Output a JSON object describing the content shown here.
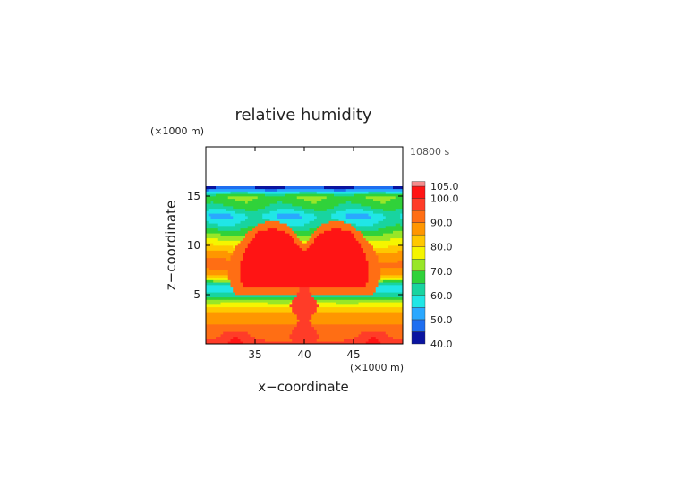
{
  "chart_data": {
    "type": "heatmap",
    "title": "relative humidity",
    "time_label": "10800 s",
    "xlabel": "x−coordinate",
    "ylabel": "z−coordinate",
    "x_unit": "(×1000 m)",
    "y_unit": "(×1000 m)",
    "xlim": [
      30,
      50
    ],
    "ylim": [
      0,
      20
    ],
    "x_ticks": [
      35,
      40,
      45
    ],
    "y_ticks": [
      5,
      10,
      15
    ],
    "x_tick_labels": [
      "35",
      "40",
      "45"
    ],
    "y_tick_labels": [
      "5",
      "10",
      "15"
    ],
    "colorbar": {
      "levels": [
        40,
        45,
        50,
        55,
        60,
        65,
        70,
        75,
        80,
        85,
        90,
        95,
        100,
        105
      ],
      "labels": [
        "40.0",
        "50.0",
        "60.0",
        "70.0",
        "80.0",
        "90.0",
        "100.0",
        "105.0"
      ],
      "colors": [
        "#0a14a0",
        "#1e6ef0",
        "#2aa8ff",
        "#20e6e6",
        "#18d4a0",
        "#30d23a",
        "#98e628",
        "#f5f500",
        "#ffc800",
        "#ff9600",
        "#ff6e14",
        "#ff3c28",
        "#ff1414",
        "#f58c8c"
      ]
    },
    "field_model": {
      "top_of_moist_layer_z": 16.1,
      "layers_z_rh": [
        [
          16.1,
          40
        ],
        [
          15.6,
          52
        ],
        [
          15.0,
          70
        ],
        [
          14.0,
          66
        ],
        [
          13.0,
          56
        ],
        [
          12.0,
          63
        ],
        [
          11.0,
          72
        ],
        [
          10.0,
          80
        ],
        [
          9.0,
          88
        ],
        [
          8.0,
          92
        ],
        [
          7.0,
          86
        ],
        [
          6.3,
          68
        ],
        [
          5.8,
          56
        ],
        [
          5.0,
          62
        ],
        [
          4.0,
          77
        ],
        [
          3.0,
          88
        ],
        [
          2.0,
          90
        ],
        [
          1.0,
          93
        ],
        [
          0.0,
          96
        ]
      ],
      "moist_plume": {
        "center_x": 40,
        "base_z": 5.8,
        "top_z": 11.0,
        "half_width_x": 6.5,
        "rh": 104
      },
      "updraft_column": {
        "center_x": 40,
        "z_range": [
          0.0,
          6.0
        ],
        "half_width_x": 1.0,
        "rh": 97
      }
    }
  }
}
